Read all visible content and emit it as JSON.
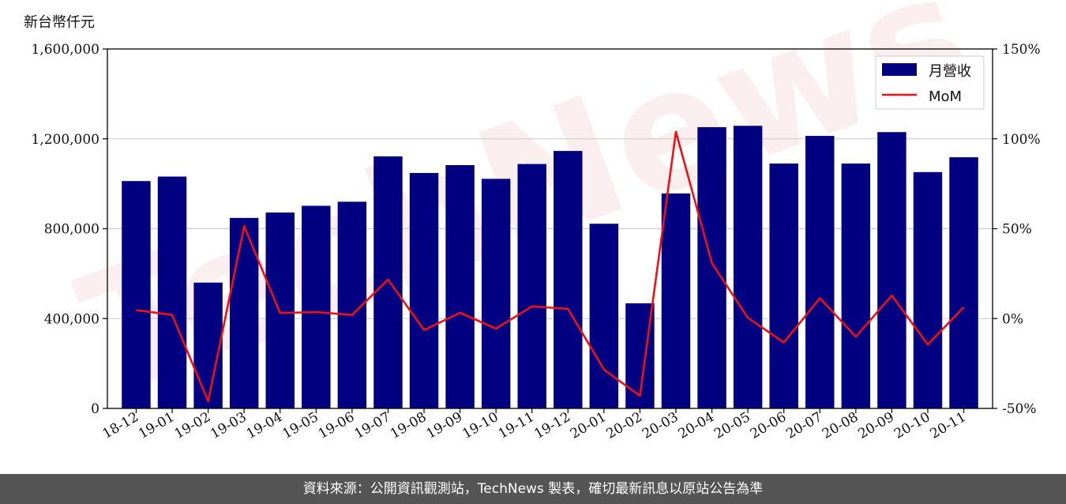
{
  "chart_data": {
    "type": "bar",
    "y_axis_unit": "新台幣仟元",
    "categories": [
      "18-12",
      "19-01",
      "19-02",
      "19-03",
      "19-04",
      "19-05",
      "19-06",
      "19-07",
      "19-08",
      "19-09",
      "19-10",
      "19-11",
      "19-12",
      "20-01",
      "20-02",
      "20-03",
      "20-04",
      "20-05",
      "20-06",
      "20-07",
      "20-08",
      "20-09",
      "20-10",
      "20-11"
    ],
    "series": [
      {
        "name": "月營收",
        "kind": "bar",
        "axis": "left",
        "color": "#000080",
        "values": [
          1012000,
          1032000,
          560000,
          848000,
          872000,
          902000,
          920000,
          1122000,
          1048000,
          1083000,
          1022000,
          1088000,
          1146000,
          822000,
          468000,
          957000,
          1252000,
          1258000,
          1090000,
          1213000,
          1090000,
          1230000,
          1052000,
          1118000
        ]
      },
      {
        "name": "MoM",
        "kind": "line",
        "axis": "right",
        "color": "#ee1111",
        "values": [
          4.7,
          2,
          -46,
          51.4,
          3.1,
          3.6,
          2,
          21.7,
          -6.4,
          3.2,
          -5.6,
          6.8,
          5.4,
          -28.4,
          -43,
          103.9,
          30.8,
          0.4,
          -13.3,
          11.3,
          -10.1,
          12.8,
          -14.5,
          6.3
        ]
      }
    ],
    "y_left": {
      "ylim": [
        0,
        1600000
      ],
      "ticks": [
        0,
        400000,
        800000,
        1200000,
        1600000
      ],
      "tick_labels": [
        "0",
        "400,000",
        "800,000",
        "1,200,000",
        "1,600,000"
      ]
    },
    "y_right": {
      "ylim": [
        -50,
        150
      ],
      "ticks": [
        -50,
        0,
        50,
        100,
        150
      ],
      "tick_labels": [
        "-50%",
        "0%",
        "50%",
        "100%",
        "150%"
      ]
    },
    "grid": true,
    "legend": "top-right",
    "watermark": "TechNews"
  },
  "footer": {
    "source_text": "資料來源：公開資訊觀測站，TechNews 製表，確切最新訊息以原站公告為準"
  }
}
